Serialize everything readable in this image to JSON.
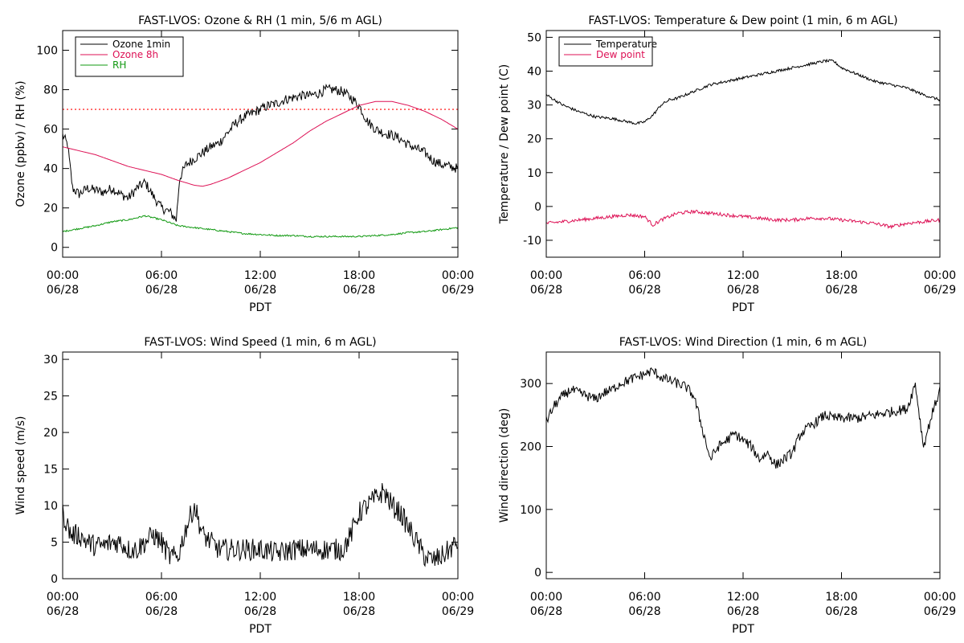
{
  "chart_data": [
    {
      "type": "line",
      "title": "FAST-LVOS: Ozone & RH (1 min, 5/6 m AGL)",
      "xlabel": "PDT",
      "ylabel": "Ozone (ppbv) / RH (%)",
      "x_tick_labels": [
        [
          "00:00",
          "06/28"
        ],
        [
          "06:00",
          "06/28"
        ],
        [
          "12:00",
          "06/28"
        ],
        [
          "18:00",
          "06/28"
        ],
        [
          "00:00",
          "06/29"
        ]
      ],
      "x_ticks_hours": [
        0,
        6,
        12,
        18,
        24
      ],
      "xlim_hours": [
        0,
        24
      ],
      "ylim": [
        -5,
        110
      ],
      "y_ticks": [
        0,
        20,
        40,
        60,
        80,
        100
      ],
      "legend_position": "top-left",
      "reference_line": {
        "y": 70,
        "color": "#ff0000",
        "style": "dotted"
      },
      "series": [
        {
          "name": "Ozone 1min",
          "color": "#000000",
          "noise": 2.5,
          "x": [
            0,
            0.3,
            0.6,
            1,
            1.5,
            2,
            2.5,
            3,
            3.5,
            4,
            4.5,
            5,
            5.5,
            6,
            6.5,
            6.9,
            7.1,
            7.5,
            8,
            8.5,
            9,
            9.5,
            10,
            10.5,
            11,
            11.5,
            12,
            12.5,
            13,
            13.5,
            14,
            14.5,
            15,
            15.5,
            16,
            16.5,
            17,
            17.5,
            18,
            18.5,
            19,
            19.5,
            20,
            20.5,
            21,
            21.5,
            22,
            22.5,
            23,
            23.5,
            24
          ],
          "y": [
            57,
            52,
            30,
            27,
            30,
            29,
            28,
            30,
            27,
            25,
            30,
            33,
            26,
            20,
            18,
            14,
            35,
            42,
            45,
            48,
            51,
            53,
            58,
            63,
            66,
            68,
            70,
            72,
            73,
            75,
            76,
            77,
            77,
            78,
            80,
            80,
            79,
            76,
            72,
            64,
            60,
            58,
            57,
            55,
            52,
            50,
            48,
            44,
            42,
            41,
            40
          ]
        },
        {
          "name": "Ozone 8h",
          "color": "#dd1155",
          "noise": 0,
          "x": [
            0,
            1,
            2,
            3,
            4,
            5,
            6,
            7,
            8,
            8.5,
            9,
            10,
            11,
            12,
            13,
            14,
            15,
            16,
            17,
            18,
            19,
            20,
            21,
            22,
            23,
            24
          ],
          "y": [
            51,
            49,
            47,
            44,
            41,
            39,
            37,
            34,
            31.5,
            31,
            32,
            35,
            39,
            43,
            48,
            53,
            59,
            64,
            68,
            72,
            74,
            74,
            72,
            69,
            65,
            60
          ]
        },
        {
          "name": "RH",
          "color": "#119911",
          "noise": 0.4,
          "x": [
            0,
            1,
            2,
            3,
            4,
            5,
            6,
            7,
            8,
            9,
            10,
            11,
            12,
            13,
            14,
            15,
            16,
            17,
            18,
            19,
            20,
            21,
            22,
            23,
            24
          ],
          "y": [
            8,
            9.5,
            11,
            13,
            14,
            16,
            14,
            11,
            10,
            9,
            8,
            7,
            6.5,
            6,
            6,
            5.5,
            5.5,
            5.5,
            5.5,
            6,
            6.5,
            7.5,
            8,
            9,
            10
          ]
        }
      ]
    },
    {
      "type": "line",
      "title": "FAST-LVOS: Temperature & Dew point (1 min, 6 m AGL)",
      "xlabel": "PDT",
      "ylabel": "Temperature / Dew point (C)",
      "x_tick_labels": [
        [
          "00:00",
          "06/28"
        ],
        [
          "06:00",
          "06/28"
        ],
        [
          "12:00",
          "06/28"
        ],
        [
          "18:00",
          "06/28"
        ],
        [
          "00:00",
          "06/29"
        ]
      ],
      "x_ticks_hours": [
        0,
        6,
        12,
        18,
        24
      ],
      "xlim_hours": [
        0,
        24
      ],
      "ylim": [
        -15,
        52
      ],
      "y_ticks": [
        -10,
        0,
        10,
        20,
        30,
        40,
        50
      ],
      "legend_position": "top-left",
      "series": [
        {
          "name": "Temperature",
          "color": "#000000",
          "noise": 0.4,
          "x": [
            0,
            1,
            2,
            3,
            4,
            5,
            5.5,
            6,
            6.5,
            7,
            7.5,
            8,
            9,
            10,
            11,
            12,
            13,
            14,
            15,
            16,
            17,
            17.5,
            18,
            19,
            20,
            21,
            22,
            23,
            24
          ],
          "y": [
            33,
            30,
            28,
            26.5,
            26,
            25,
            24.5,
            25,
            27,
            30,
            31.5,
            32,
            34,
            36,
            37,
            38,
            39,
            40,
            41,
            42,
            43,
            43,
            41,
            39,
            37,
            36,
            35,
            33,
            31.5
          ]
        },
        {
          "name": "Dew point",
          "color": "#dd1155",
          "noise": 0.5,
          "x": [
            0,
            1,
            2,
            3,
            4,
            5,
            6,
            6.5,
            7,
            7.5,
            8,
            9,
            10,
            11,
            12,
            13,
            14,
            15,
            16,
            17,
            18,
            19,
            20,
            21,
            22,
            23,
            24
          ],
          "y": [
            -5,
            -4.5,
            -4,
            -3.5,
            -3,
            -2.5,
            -3,
            -5.5,
            -4,
            -3,
            -2,
            -1.5,
            -2,
            -2.5,
            -3,
            -3.5,
            -4,
            -4,
            -3.5,
            -3.5,
            -4,
            -4.5,
            -5,
            -6,
            -5,
            -4.5,
            -4
          ]
        }
      ]
    },
    {
      "type": "line",
      "title": "FAST-LVOS: Wind Speed (1 min, 6 m AGL)",
      "xlabel": "PDT",
      "ylabel": "Wind speed (m/s)",
      "x_tick_labels": [
        [
          "00:00",
          "06/28"
        ],
        [
          "06:00",
          "06/28"
        ],
        [
          "12:00",
          "06/28"
        ],
        [
          "18:00",
          "06/28"
        ],
        [
          "00:00",
          "06/29"
        ]
      ],
      "x_ticks_hours": [
        0,
        6,
        12,
        18,
        24
      ],
      "xlim_hours": [
        0,
        24
      ],
      "ylim": [
        0,
        31
      ],
      "y_ticks": [
        0,
        5,
        10,
        15,
        20,
        25,
        30
      ],
      "series": [
        {
          "name": "",
          "color": "#000000",
          "noise": 1.5,
          "x": [
            0,
            0.5,
            1,
            1.5,
            2,
            2.5,
            3,
            3.5,
            4,
            4.5,
            5,
            5.5,
            6,
            6.5,
            7,
            7.5,
            8,
            8.5,
            9,
            9.5,
            10,
            11,
            12,
            13,
            14,
            15,
            16,
            17,
            17.5,
            18,
            18.5,
            19,
            19.5,
            20,
            20.5,
            21,
            21.5,
            22,
            22.5,
            23,
            23.5,
            24
          ],
          "y": [
            9,
            6,
            6,
            5,
            4.5,
            4.5,
            5,
            5,
            4,
            4,
            5,
            6,
            5,
            3,
            3,
            7,
            10,
            6,
            5,
            4,
            4,
            4,
            4,
            3.5,
            4,
            4,
            4,
            4,
            6,
            9,
            10,
            11,
            12,
            10,
            9,
            7,
            5,
            3,
            2.5,
            3,
            4,
            5
          ]
        }
      ]
    },
    {
      "type": "line",
      "title": "FAST-LVOS: Wind Direction (1 min, 6 m AGL)",
      "xlabel": "PDT",
      "ylabel": "Wind direction (deg)",
      "x_tick_labels": [
        [
          "00:00",
          "06/28"
        ],
        [
          "06:00",
          "06/28"
        ],
        [
          "12:00",
          "06/28"
        ],
        [
          "18:00",
          "06/28"
        ],
        [
          "00:00",
          "06/29"
        ]
      ],
      "x_ticks_hours": [
        0,
        6,
        12,
        18,
        24
      ],
      "xlim_hours": [
        0,
        24
      ],
      "ylim": [
        -10,
        350
      ],
      "y_ticks": [
        0,
        100,
        200,
        300
      ],
      "series": [
        {
          "name": "",
          "color": "#000000",
          "noise": 8,
          "x": [
            0,
            0.5,
            1,
            1.5,
            2,
            2.5,
            3,
            3.5,
            4,
            4.5,
            5,
            5.5,
            6,
            6.5,
            7,
            7.5,
            8,
            8.5,
            9,
            9.5,
            10,
            10.5,
            11,
            11.5,
            12,
            12.5,
            13,
            13.5,
            14,
            14.5,
            15,
            15.5,
            16,
            16.5,
            17,
            17.5,
            18,
            19,
            20,
            21,
            22,
            22.5,
            23,
            23.5,
            24
          ],
          "y": [
            240,
            265,
            280,
            290,
            285,
            280,
            275,
            285,
            290,
            300,
            305,
            310,
            315,
            320,
            310,
            305,
            300,
            295,
            280,
            230,
            180,
            200,
            210,
            220,
            210,
            200,
            180,
            190,
            170,
            180,
            190,
            220,
            230,
            240,
            250,
            245,
            245,
            245,
            250,
            255,
            260,
            300,
            200,
            250,
            290
          ]
        }
      ]
    }
  ]
}
